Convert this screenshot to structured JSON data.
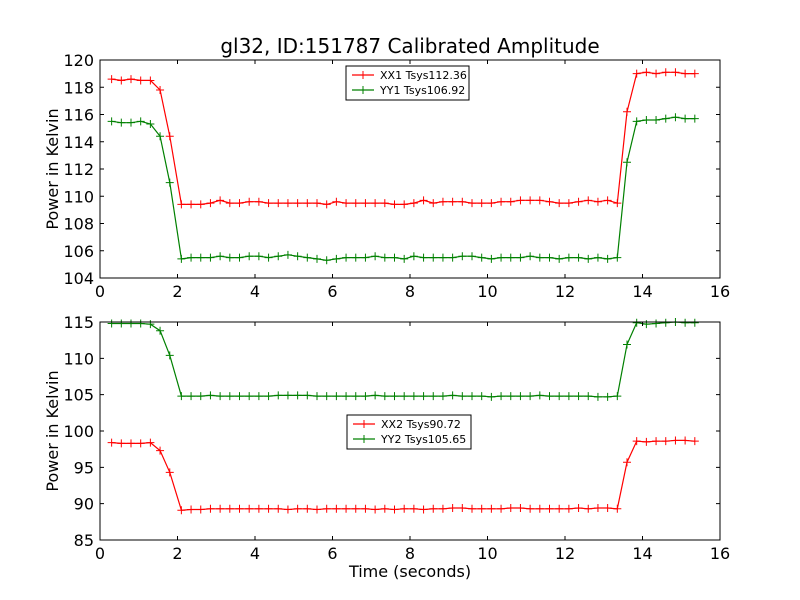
{
  "title": "gl32, ID:151787 Calibrated Amplitude",
  "chart_data": [
    {
      "type": "line",
      "xlabel": "",
      "ylabel": "Power in Kelvin",
      "xlim": [
        0,
        16
      ],
      "ylim": [
        104,
        120
      ],
      "xticks": [
        0,
        2,
        4,
        6,
        8,
        10,
        12,
        14,
        16
      ],
      "yticks": [
        104,
        106,
        108,
        110,
        112,
        114,
        116,
        118,
        120
      ],
      "legend_position": "top-center",
      "x": [
        0.3,
        0.55,
        0.8,
        1.05,
        1.3,
        1.55,
        1.8,
        2.1,
        2.35,
        2.6,
        2.85,
        3.1,
        3.35,
        3.6,
        3.85,
        4.1,
        4.35,
        4.6,
        4.85,
        5.1,
        5.35,
        5.6,
        5.85,
        6.1,
        6.35,
        6.6,
        6.85,
        7.1,
        7.35,
        7.6,
        7.85,
        8.1,
        8.35,
        8.6,
        8.85,
        9.1,
        9.35,
        9.6,
        9.85,
        10.1,
        10.35,
        10.6,
        10.85,
        11.1,
        11.35,
        11.6,
        11.85,
        12.1,
        12.35,
        12.6,
        12.85,
        13.1,
        13.35,
        13.6,
        13.85,
        14.1,
        14.35,
        14.6,
        14.85,
        15.1,
        15.35
      ],
      "series": [
        {
          "name": "XX1 Tsys112.36",
          "color": "#ff0000",
          "values": [
            118.6,
            118.5,
            118.6,
            118.5,
            118.5,
            117.8,
            114.4,
            109.4,
            109.4,
            109.4,
            109.5,
            109.7,
            109.5,
            109.5,
            109.6,
            109.6,
            109.5,
            109.5,
            109.5,
            109.5,
            109.5,
            109.5,
            109.4,
            109.6,
            109.5,
            109.5,
            109.5,
            109.5,
            109.5,
            109.4,
            109.4,
            109.5,
            109.7,
            109.5,
            109.6,
            109.6,
            109.6,
            109.5,
            109.5,
            109.5,
            109.6,
            109.6,
            109.7,
            109.7,
            109.7,
            109.6,
            109.5,
            109.5,
            109.6,
            109.7,
            109.6,
            109.7,
            109.5,
            116.2,
            119.0,
            119.1,
            119.0,
            119.1,
            119.1,
            119.0,
            119.0
          ]
        },
        {
          "name": "YY1 Tsys106.92",
          "color": "#008000",
          "values": [
            115.5,
            115.4,
            115.4,
            115.5,
            115.3,
            114.4,
            111.0,
            105.4,
            105.5,
            105.5,
            105.5,
            105.6,
            105.5,
            105.5,
            105.6,
            105.6,
            105.5,
            105.6,
            105.7,
            105.6,
            105.5,
            105.4,
            105.3,
            105.4,
            105.5,
            105.5,
            105.5,
            105.6,
            105.5,
            105.5,
            105.4,
            105.6,
            105.5,
            105.5,
            105.5,
            105.5,
            105.6,
            105.6,
            105.5,
            105.4,
            105.5,
            105.5,
            105.5,
            105.6,
            105.5,
            105.5,
            105.4,
            105.5,
            105.5,
            105.4,
            105.5,
            105.4,
            105.5,
            112.5,
            115.5,
            115.6,
            115.6,
            115.7,
            115.8,
            115.7,
            115.7
          ]
        }
      ]
    },
    {
      "type": "line",
      "xlabel": "Time (seconds)",
      "ylabel": "Power in Kelvin",
      "xlim": [
        0,
        16
      ],
      "ylim": [
        85,
        115
      ],
      "xticks": [
        0,
        2,
        4,
        6,
        8,
        10,
        12,
        14,
        16
      ],
      "yticks": [
        85,
        90,
        95,
        100,
        105,
        110,
        115
      ],
      "legend_position": "center",
      "x": [
        0.3,
        0.55,
        0.8,
        1.05,
        1.3,
        1.55,
        1.8,
        2.1,
        2.35,
        2.6,
        2.85,
        3.1,
        3.35,
        3.6,
        3.85,
        4.1,
        4.35,
        4.6,
        4.85,
        5.1,
        5.35,
        5.6,
        5.85,
        6.1,
        6.35,
        6.6,
        6.85,
        7.1,
        7.35,
        7.6,
        7.85,
        8.1,
        8.35,
        8.6,
        8.85,
        9.1,
        9.35,
        9.6,
        9.85,
        10.1,
        10.35,
        10.6,
        10.85,
        11.1,
        11.35,
        11.6,
        11.85,
        12.1,
        12.35,
        12.6,
        12.85,
        13.1,
        13.35,
        13.6,
        13.85,
        14.1,
        14.35,
        14.6,
        14.85,
        15.1,
        15.35
      ],
      "series": [
        {
          "name": "XX2 Tsys90.72",
          "color": "#ff0000",
          "values": [
            98.4,
            98.3,
            98.3,
            98.3,
            98.4,
            97.3,
            94.3,
            89.1,
            89.2,
            89.2,
            89.3,
            89.3,
            89.3,
            89.3,
            89.3,
            89.3,
            89.3,
            89.3,
            89.2,
            89.3,
            89.3,
            89.2,
            89.3,
            89.3,
            89.3,
            89.3,
            89.3,
            89.2,
            89.3,
            89.2,
            89.3,
            89.3,
            89.2,
            89.3,
            89.3,
            89.4,
            89.4,
            89.3,
            89.3,
            89.3,
            89.3,
            89.4,
            89.4,
            89.3,
            89.3,
            89.3,
            89.3,
            89.3,
            89.4,
            89.3,
            89.4,
            89.4,
            89.3,
            95.7,
            98.6,
            98.5,
            98.6,
            98.6,
            98.7,
            98.7,
            98.6
          ]
        },
        {
          "name": "YY2 Tsys105.65",
          "color": "#008000",
          "values": [
            114.8,
            114.8,
            114.8,
            114.8,
            114.7,
            113.8,
            110.4,
            104.8,
            104.8,
            104.8,
            104.9,
            104.8,
            104.8,
            104.8,
            104.8,
            104.8,
            104.8,
            104.9,
            104.9,
            104.9,
            104.9,
            104.8,
            104.8,
            104.8,
            104.8,
            104.8,
            104.8,
            104.9,
            104.8,
            104.8,
            104.8,
            104.8,
            104.8,
            104.8,
            104.8,
            104.9,
            104.8,
            104.8,
            104.8,
            104.7,
            104.8,
            104.8,
            104.8,
            104.8,
            104.9,
            104.8,
            104.8,
            104.8,
            104.8,
            104.8,
            104.7,
            104.7,
            104.8,
            111.9,
            114.9,
            114.7,
            114.8,
            114.9,
            115.0,
            114.9,
            114.9
          ]
        }
      ]
    }
  ]
}
